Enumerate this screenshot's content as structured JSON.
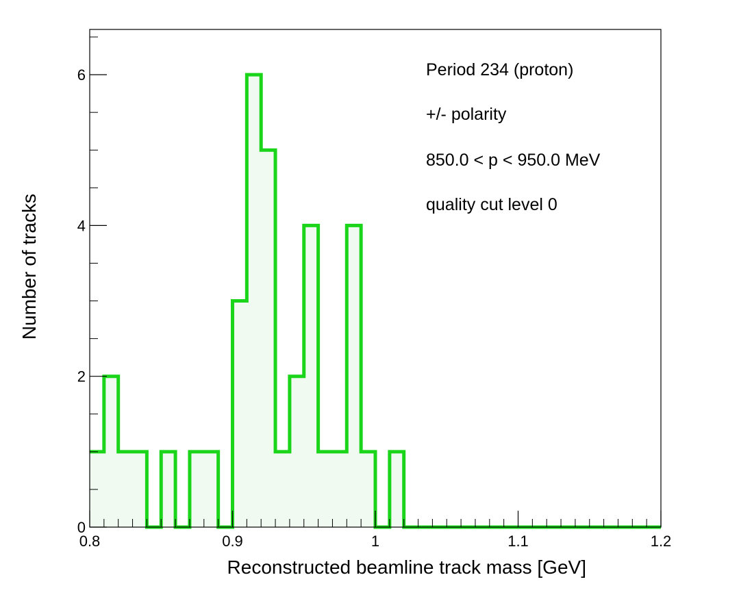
{
  "chart_data": {
    "type": "bar",
    "subtype": "step-histogram",
    "xlabel": "Reconstructed beamline track mass [GeV]",
    "ylabel": "Number of tracks",
    "xlim": [
      0.8,
      1.2
    ],
    "ylim": [
      0,
      6.6
    ],
    "bin_width": 0.01,
    "bin_edges": [
      0.8,
      0.81,
      0.82,
      0.83,
      0.84,
      0.85,
      0.86,
      0.87,
      0.88,
      0.89,
      0.9,
      0.91,
      0.92,
      0.93,
      0.94,
      0.95,
      0.96,
      0.97,
      0.98,
      0.99,
      1.0,
      1.01,
      1.02,
      1.03,
      1.04,
      1.05,
      1.06,
      1.07,
      1.08,
      1.09,
      1.1,
      1.11,
      1.12,
      1.13,
      1.14,
      1.15,
      1.16,
      1.17,
      1.18,
      1.19,
      1.2
    ],
    "values": [
      1,
      2,
      1,
      1,
      0,
      1,
      0,
      1,
      1,
      0,
      3,
      6,
      5,
      1,
      2,
      4,
      1,
      1,
      4,
      1,
      0,
      1,
      0,
      0,
      0,
      0,
      0,
      0,
      0,
      0,
      0,
      0,
      0,
      0,
      0,
      0,
      0,
      0,
      0,
      0
    ],
    "x_ticks": [
      0.8,
      0.9,
      1.0,
      1.1,
      1.2
    ],
    "x_tick_labels": [
      "0.8",
      "0.9",
      "1",
      "1.1",
      "1.2"
    ],
    "y_ticks": [
      0,
      2,
      4,
      6
    ],
    "y_tick_labels": [
      "0",
      "2",
      "4",
      "6"
    ],
    "line_color": "#1ad51a",
    "fill_color": "#f0faf0",
    "grid": false,
    "legend": "none",
    "annotations": [
      "Period 234 (proton)",
      "+/- polarity",
      "850.0 < p < 950.0 MeV",
      "quality cut level 0"
    ]
  }
}
